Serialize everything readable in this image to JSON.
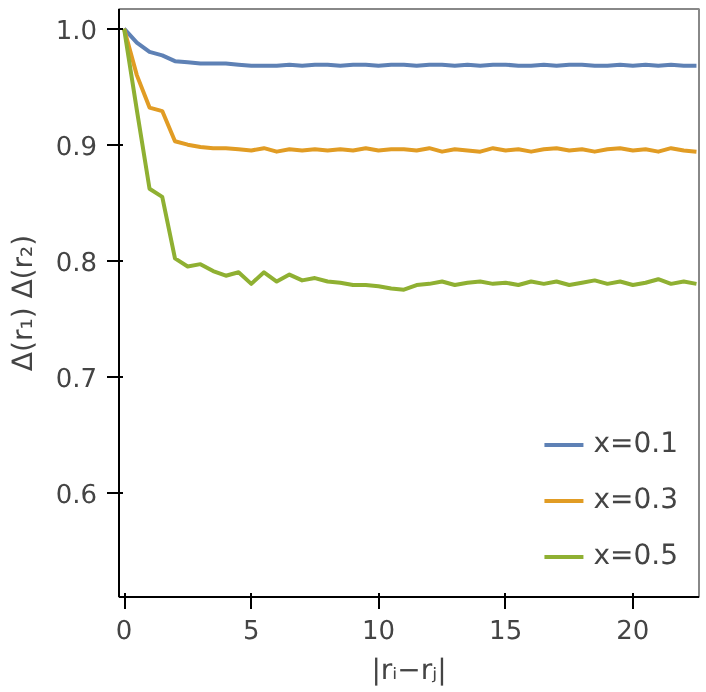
{
  "chart_data": {
    "type": "line",
    "xlabel": "|rᵢ−rⱼ|",
    "ylabel": "Δ(r₁) Δ(r₂)",
    "x": [
      0,
      0.5,
      1,
      1.5,
      2,
      2.5,
      3,
      3.5,
      4,
      4.5,
      5,
      5.5,
      6,
      6.5,
      7,
      7.5,
      8,
      8.5,
      9,
      9.5,
      10,
      10.5,
      11,
      11.5,
      12,
      12.5,
      13,
      13.5,
      14,
      14.5,
      15,
      15.5,
      16,
      16.5,
      17,
      17.5,
      18,
      18.5,
      19,
      19.5,
      20,
      20.5,
      21,
      21.5,
      22,
      22.5
    ],
    "series": [
      {
        "name": "x=0.1",
        "color": "#5e81b5",
        "values": [
          1.0,
          0.988,
          0.98,
          0.977,
          0.972,
          0.971,
          0.97,
          0.97,
          0.97,
          0.969,
          0.968,
          0.968,
          0.968,
          0.969,
          0.968,
          0.969,
          0.969,
          0.968,
          0.969,
          0.969,
          0.968,
          0.969,
          0.969,
          0.968,
          0.969,
          0.969,
          0.968,
          0.969,
          0.968,
          0.969,
          0.969,
          0.968,
          0.968,
          0.969,
          0.968,
          0.969,
          0.969,
          0.968,
          0.968,
          0.969,
          0.968,
          0.969,
          0.968,
          0.969,
          0.968,
          0.968
        ]
      },
      {
        "name": "x=0.3",
        "color": "#e19c24",
        "values": [
          1.0,
          0.96,
          0.932,
          0.929,
          0.903,
          0.9,
          0.898,
          0.897,
          0.897,
          0.896,
          0.895,
          0.897,
          0.894,
          0.896,
          0.895,
          0.896,
          0.895,
          0.896,
          0.895,
          0.897,
          0.895,
          0.896,
          0.896,
          0.895,
          0.897,
          0.894,
          0.896,
          0.895,
          0.894,
          0.897,
          0.895,
          0.896,
          0.894,
          0.896,
          0.897,
          0.895,
          0.896,
          0.894,
          0.896,
          0.897,
          0.895,
          0.896,
          0.894,
          0.897,
          0.895,
          0.894
        ]
      },
      {
        "name": "x=0.5",
        "color": "#8fb032",
        "values": [
          1.0,
          0.93,
          0.862,
          0.855,
          0.802,
          0.795,
          0.797,
          0.791,
          0.787,
          0.79,
          0.78,
          0.79,
          0.782,
          0.788,
          0.783,
          0.785,
          0.782,
          0.781,
          0.779,
          0.779,
          0.778,
          0.776,
          0.775,
          0.779,
          0.78,
          0.782,
          0.779,
          0.781,
          0.782,
          0.78,
          0.781,
          0.779,
          0.782,
          0.78,
          0.782,
          0.779,
          0.781,
          0.783,
          0.78,
          0.782,
          0.779,
          0.781,
          0.784,
          0.78,
          0.782,
          0.78
        ]
      }
    ],
    "xlim": [
      -0.2,
      22.6
    ],
    "ylim": [
      0.51,
      1.017
    ],
    "xticks": [
      0,
      5,
      10,
      15,
      20
    ],
    "yticks": [
      0.6,
      0.7,
      0.8,
      0.9,
      {
        "value": 1.0,
        "label": "1.0"
      }
    ],
    "legend": "bottom right",
    "grid": false
  }
}
